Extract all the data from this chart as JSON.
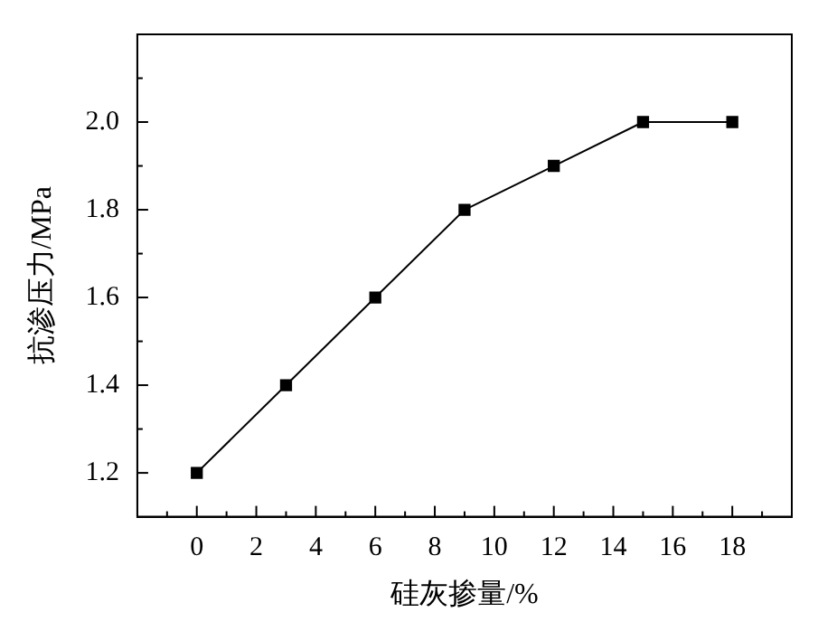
{
  "chart_data": {
    "type": "line",
    "xlabel": "硅灰掺量/%",
    "ylabel": "抗渗压力/MPa",
    "x": [
      0,
      3,
      6,
      9,
      12,
      15,
      18
    ],
    "series": [
      {
        "color": "#000000",
        "values": [
          1.2,
          1.4,
          1.6,
          1.8,
          1.9,
          2.0,
          2.0
        ]
      }
    ],
    "xlim": [
      -2,
      20
    ],
    "ylim": [
      1.1,
      2.2
    ],
    "xticks": [
      0,
      2,
      4,
      6,
      8,
      10,
      12,
      14,
      16,
      18,
      {
        "value": -1,
        "label": null
      },
      {
        "value": 1,
        "label": null
      },
      {
        "value": 3,
        "label": null
      },
      {
        "value": 5,
        "label": null
      },
      {
        "value": 7,
        "label": null
      },
      {
        "value": 9,
        "label": null
      },
      {
        "value": 11,
        "label": null
      },
      {
        "value": 13,
        "label": null
      },
      {
        "value": 15,
        "label": null
      },
      {
        "value": 17,
        "label": null
      },
      {
        "value": 19,
        "label": null
      }
    ],
    "yticks": [
      {
        "value": 1.2,
        "label": "1.2"
      },
      {
        "value": 1.4,
        "label": "1.4"
      },
      {
        "value": 1.6,
        "label": "1.6"
      },
      {
        "value": 1.8,
        "label": "1.8"
      },
      {
        "value": 2.0,
        "label": "2.0"
      },
      {
        "value": 1.3,
        "label": null
      },
      {
        "value": 1.5,
        "label": null
      },
      {
        "value": 1.7,
        "label": null
      },
      {
        "value": 1.9,
        "label": null
      },
      {
        "value": 2.1,
        "label": null
      }
    ],
    "marker": "square",
    "line_style": "solid",
    "grid": false,
    "legend": false
  }
}
